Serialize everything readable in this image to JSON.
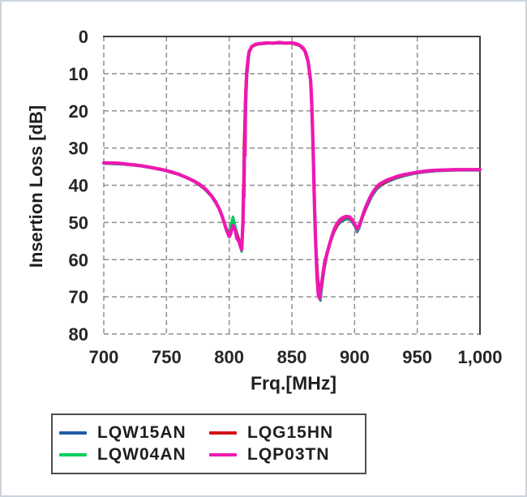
{
  "page": {
    "background": "#ffffff",
    "outer_border_color": "#ccd4dc"
  },
  "chart_data": {
    "type": "line",
    "title": "",
    "x_axis": {
      "label": "Frq.[MHz]",
      "tick_labels": [
        "700",
        "750",
        "800",
        "850",
        "900",
        "950",
        "1,000"
      ],
      "tick_values": [
        700,
        750,
        800,
        850,
        900,
        950,
        1000
      ],
      "min": 700,
      "max": 1000
    },
    "y_axis": {
      "label": "Insertion Loss [dB]",
      "tick_labels": [
        "0",
        "10",
        "20",
        "30",
        "40",
        "50",
        "60",
        "70",
        "80"
      ],
      "tick_values": [
        0,
        10,
        20,
        30,
        40,
        50,
        60,
        70,
        80
      ],
      "min": 0,
      "max": 80,
      "inverted": true
    },
    "grid": {
      "style": "dashed",
      "color": "#8f8f8f"
    },
    "frame": {
      "solid_edges": [
        "top",
        "right"
      ],
      "dashed_edges": [
        "left",
        "bottom"
      ],
      "color": "#3f3f3f"
    },
    "text_color": "#1f1f1f",
    "legend_position": "bottom",
    "legend_columns": 2,
    "series": [
      {
        "name": "LQW15AN",
        "color": "#1f5ba8",
        "points": [
          [
            700,
            34.2
          ],
          [
            715,
            34.4
          ],
          [
            730,
            34.9
          ],
          [
            745,
            35.8
          ],
          [
            760,
            37.2
          ],
          [
            772,
            39.0
          ],
          [
            780,
            41.0
          ],
          [
            786,
            43.1
          ],
          [
            791,
            45.8
          ],
          [
            794,
            48.2
          ],
          [
            797,
            51.2
          ],
          [
            800,
            52.5
          ],
          [
            803,
            49.3
          ],
          [
            805,
            51.2
          ],
          [
            807,
            53.6
          ],
          [
            809,
            55.8
          ],
          [
            810.5,
            54.0
          ],
          [
            811.5,
            45.0
          ],
          [
            812.5,
            30.0
          ],
          [
            814,
            12.0
          ],
          [
            816,
            4.5
          ],
          [
            818,
            2.9
          ],
          [
            822,
            2.2
          ],
          [
            830,
            1.9
          ],
          [
            840,
            1.8
          ],
          [
            850,
            1.9
          ],
          [
            856,
            2.5
          ],
          [
            860,
            3.8
          ],
          [
            863,
            7.0
          ],
          [
            865,
            12.5
          ],
          [
            867,
            30.0
          ],
          [
            869,
            54.0
          ],
          [
            870.5,
            64.0
          ],
          [
            872,
            69.5
          ],
          [
            872.8,
            71.0
          ],
          [
            874,
            67.5
          ],
          [
            876,
            62.5
          ],
          [
            878,
            59.0
          ],
          [
            881,
            55.2
          ],
          [
            884,
            52.4
          ],
          [
            887,
            50.6
          ],
          [
            890,
            49.6
          ],
          [
            894,
            49.1
          ],
          [
            897,
            49.4
          ],
          [
            900,
            51.0
          ],
          [
            902,
            52.6
          ],
          [
            904,
            51.4
          ],
          [
            907,
            48.0
          ],
          [
            910,
            45.8
          ],
          [
            914,
            42.9
          ],
          [
            918,
            41.0
          ],
          [
            922,
            39.9
          ],
          [
            927,
            39.0
          ],
          [
            933,
            38.2
          ],
          [
            940,
            37.5
          ],
          [
            948,
            36.9
          ],
          [
            956,
            36.5
          ],
          [
            965,
            36.2
          ],
          [
            980,
            36.0
          ],
          [
            1000,
            36.0
          ]
        ]
      },
      {
        "name": "LQW04AN",
        "color": "#00cf5f",
        "points": [
          [
            700,
            34.1
          ],
          [
            715,
            34.3
          ],
          [
            730,
            34.8
          ],
          [
            745,
            35.7
          ],
          [
            760,
            37.0
          ],
          [
            772,
            38.8
          ],
          [
            780,
            40.9
          ],
          [
            786,
            42.8
          ],
          [
            791,
            45.5
          ],
          [
            794,
            47.8
          ],
          [
            797,
            51.0
          ],
          [
            799,
            52.8
          ],
          [
            801,
            51.5
          ],
          [
            803,
            48.5
          ],
          [
            805,
            51.5
          ],
          [
            807,
            54.5
          ],
          [
            809,
            56.5
          ],
          [
            810,
            57.8
          ],
          [
            811.5,
            46.0
          ],
          [
            812.5,
            28.0
          ],
          [
            814,
            11.0
          ],
          [
            816,
            4.2
          ],
          [
            818,
            2.8
          ],
          [
            822,
            2.1
          ],
          [
            830,
            1.8
          ],
          [
            840,
            1.7
          ],
          [
            850,
            1.8
          ],
          [
            856,
            2.4
          ],
          [
            860,
            3.6
          ],
          [
            863,
            6.9
          ],
          [
            865,
            12.2
          ],
          [
            867,
            30.5
          ],
          [
            869,
            55.0
          ],
          [
            870.5,
            64.5
          ],
          [
            872,
            70.0
          ],
          [
            872.5,
            70.6
          ],
          [
            874,
            66.5
          ],
          [
            876,
            61.8
          ],
          [
            878,
            58.6
          ],
          [
            881,
            54.9
          ],
          [
            884,
            52.0
          ],
          [
            887,
            50.3
          ],
          [
            890,
            49.2
          ],
          [
            894,
            48.8
          ],
          [
            897,
            49.0
          ],
          [
            900,
            50.8
          ],
          [
            902,
            52.2
          ],
          [
            904,
            51.0
          ],
          [
            907,
            47.8
          ],
          [
            910,
            45.4
          ],
          [
            914,
            42.6
          ],
          [
            918,
            40.7
          ],
          [
            922,
            39.7
          ],
          [
            927,
            38.8
          ],
          [
            933,
            38.0
          ],
          [
            940,
            37.3
          ],
          [
            948,
            36.8
          ],
          [
            956,
            36.3
          ],
          [
            965,
            36.1
          ],
          [
            980,
            35.9
          ],
          [
            1000,
            35.9
          ]
        ]
      },
      {
        "name": "LQG15HN",
        "color": "#d41118",
        "points": [
          [
            700,
            34.0
          ],
          [
            715,
            34.2
          ],
          [
            730,
            34.7
          ],
          [
            745,
            35.6
          ],
          [
            760,
            37.0
          ],
          [
            772,
            38.8
          ],
          [
            780,
            40.8
          ],
          [
            786,
            42.8
          ],
          [
            791,
            45.6
          ],
          [
            794,
            47.9
          ],
          [
            797,
            51.1
          ],
          [
            800,
            53.5
          ],
          [
            803,
            50.9
          ],
          [
            805,
            52.0
          ],
          [
            807,
            54.1
          ],
          [
            809,
            56.2
          ],
          [
            810,
            56.6
          ],
          [
            811,
            48.0
          ],
          [
            812,
            28.0
          ],
          [
            813,
            15.0
          ],
          [
            814,
            8.5
          ],
          [
            816,
            4.2
          ],
          [
            818,
            2.8
          ],
          [
            822,
            2.1
          ],
          [
            830,
            1.8
          ],
          [
            840,
            1.7
          ],
          [
            850,
            1.8
          ],
          [
            856,
            2.4
          ],
          [
            860,
            3.7
          ],
          [
            863,
            6.9
          ],
          [
            865,
            12.3
          ],
          [
            867,
            31.0
          ],
          [
            869,
            55.5
          ],
          [
            870.5,
            64.0
          ],
          [
            872,
            70.5
          ],
          [
            873.5,
            67.5
          ],
          [
            875,
            63.8
          ],
          [
            877,
            59.8
          ],
          [
            880,
            56.0
          ],
          [
            883,
            53.0
          ],
          [
            886,
            50.7
          ],
          [
            889,
            49.3
          ],
          [
            893,
            48.6
          ],
          [
            896,
            48.7
          ],
          [
            899,
            49.8
          ],
          [
            902,
            51.9
          ],
          [
            904,
            50.7
          ],
          [
            907,
            48.0
          ],
          [
            910,
            45.2
          ],
          [
            914,
            42.4
          ],
          [
            918,
            40.5
          ],
          [
            922,
            39.6
          ],
          [
            927,
            38.7
          ],
          [
            933,
            37.9
          ],
          [
            940,
            37.2
          ],
          [
            948,
            36.7
          ],
          [
            956,
            36.3
          ],
          [
            965,
            36.0
          ],
          [
            980,
            35.9
          ],
          [
            1000,
            35.8
          ]
        ]
      },
      {
        "name": "LQP03TN",
        "color": "#ee18b2",
        "points": [
          [
            700,
            34.0
          ],
          [
            706,
            34.0
          ],
          [
            712,
            34.1
          ],
          [
            718,
            34.3
          ],
          [
            724,
            34.5
          ],
          [
            730,
            34.8
          ],
          [
            736,
            35.1
          ],
          [
            742,
            35.5
          ],
          [
            748,
            35.9
          ],
          [
            754,
            36.4
          ],
          [
            760,
            37.1
          ],
          [
            766,
            37.9
          ],
          [
            772,
            38.9
          ],
          [
            777,
            39.9
          ],
          [
            782,
            41.3
          ],
          [
            786,
            42.9
          ],
          [
            789,
            44.4
          ],
          [
            792,
            46.3
          ],
          [
            794,
            48.0
          ],
          [
            796,
            50.0
          ],
          [
            798,
            52.2
          ],
          [
            800,
            53.8
          ],
          [
            801,
            53.2
          ],
          [
            803,
            50.8
          ],
          [
            805,
            52.2
          ],
          [
            806,
            54.2
          ],
          [
            808,
            55.2
          ],
          [
            809,
            56.5
          ],
          [
            810,
            57.3
          ],
          [
            811,
            50.0
          ],
          [
            811.4,
            41.0
          ],
          [
            811.8,
            43.0
          ],
          [
            812.2,
            30.0
          ],
          [
            812.6,
            32.0
          ],
          [
            813,
            18.0
          ],
          [
            814,
            10.0
          ],
          [
            815,
            6.0
          ],
          [
            816,
            4.0
          ],
          [
            818,
            2.7
          ],
          [
            821,
            2.1
          ],
          [
            825,
            1.9
          ],
          [
            830,
            1.7
          ],
          [
            835,
            1.8
          ],
          [
            840,
            1.6
          ],
          [
            845,
            1.8
          ],
          [
            850,
            1.7
          ],
          [
            853,
            1.9
          ],
          [
            856,
            2.3
          ],
          [
            859,
            3.1
          ],
          [
            861,
            4.3
          ],
          [
            863,
            6.8
          ],
          [
            865,
            12.0
          ],
          [
            866,
            19.0
          ],
          [
            867,
            31.0
          ],
          [
            868,
            45.0
          ],
          [
            869,
            56.0
          ],
          [
            870,
            64.0
          ],
          [
            871,
            69.3
          ],
          [
            872,
            70.3
          ],
          [
            873,
            68.0
          ],
          [
            874.5,
            64.5
          ],
          [
            876,
            61.0
          ],
          [
            878,
            58.3
          ],
          [
            880,
            55.9
          ],
          [
            882,
            53.6
          ],
          [
            884,
            51.6
          ],
          [
            886,
            50.3
          ],
          [
            888,
            49.4
          ],
          [
            890,
            48.8
          ],
          [
            893,
            48.4
          ],
          [
            896,
            48.5
          ],
          [
            898,
            49.2
          ],
          [
            900,
            50.4
          ],
          [
            902,
            51.8
          ],
          [
            904,
            50.6
          ],
          [
            906,
            48.6
          ],
          [
            908,
            46.6
          ],
          [
            910,
            45.0
          ],
          [
            912,
            43.5
          ],
          [
            914,
            42.2
          ],
          [
            916,
            41.2
          ],
          [
            918,
            40.3
          ],
          [
            920,
            39.7
          ],
          [
            923,
            39.1
          ],
          [
            926,
            38.6
          ],
          [
            930,
            38.1
          ],
          [
            935,
            37.5
          ],
          [
            940,
            37.1
          ],
          [
            945,
            36.8
          ],
          [
            950,
            36.5
          ],
          [
            956,
            36.2
          ],
          [
            962,
            36.0
          ],
          [
            970,
            35.9
          ],
          [
            980,
            35.8
          ],
          [
            1000,
            35.8
          ]
        ]
      }
    ]
  }
}
